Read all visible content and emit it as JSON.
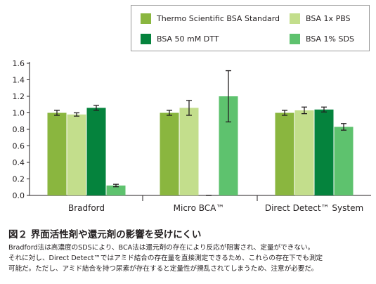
{
  "legend": [
    {
      "label": "Thermo Scientific BSA Standard",
      "color": "#8ab63f"
    },
    {
      "label": "BSA 1x PBS",
      "color": "#c3de8c"
    },
    {
      "label": "BSA 50 mM DTT",
      "color": "#05833d"
    },
    {
      "label": "BSA 1% SDS",
      "color": "#5ec26e"
    }
  ],
  "chart_data": {
    "type": "bar",
    "categories": [
      "Bradford",
      "Micro BCA™",
      "Direct Detect™ System"
    ],
    "series": [
      {
        "name": "Thermo Scientific BSA Standard",
        "color": "#8ab63f",
        "values": [
          1.0,
          1.0,
          1.0
        ],
        "errors": [
          0.03,
          0.03,
          0.03
        ]
      },
      {
        "name": "BSA 1x PBS",
        "color": "#c3de8c",
        "values": [
          0.98,
          1.06,
          1.03
        ],
        "errors": [
          0.02,
          0.09,
          0.04
        ]
      },
      {
        "name": "BSA 50 mM DTT",
        "color": "#05833d",
        "values": [
          1.06,
          0.0,
          1.04
        ],
        "errors": [
          0.03,
          0.0,
          0.03
        ]
      },
      {
        "name": "BSA 1% SDS",
        "color": "#5ec26e",
        "values": [
          0.12,
          1.2,
          0.83
        ],
        "errors": [
          0.015,
          0.31,
          0.04
        ]
      }
    ],
    "yticks": [
      "0.0",
      "0.2",
      "0.4",
      "0.6",
      "0.8",
      "1.0",
      "1.2",
      "1.4",
      "1.6"
    ],
    "ylim": [
      0,
      1.6
    ],
    "grid": false,
    "legend_position": "top-right",
    "xlabel": "",
    "ylabel": ""
  },
  "figure": {
    "title": "図２ 界面活性剤や還元剤の影響を受けにくい",
    "caption_lines": [
      "Bradford法は高濃度のSDSにより、BCA法は還元剤の存在により反応が阻害され、定量ができない。",
      "それに対し、Direct Detect™ではアミド結合の存在量を直接測定できるため、これらの存在下でも測定",
      "可能だ。ただし、アミド結合を持つ尿素が存在すると定量性が攪乱されてしまうため、注意が必要だ。"
    ]
  }
}
